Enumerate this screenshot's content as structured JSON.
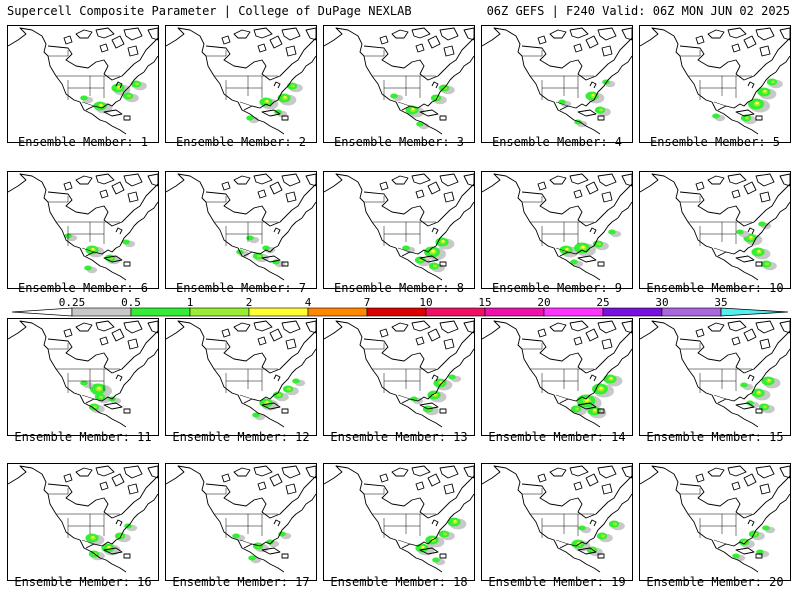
{
  "header": {
    "left": "Supercell Composite Parameter | College of DuPage NEXLAB",
    "right": "06Z GEFS | F240 Valid: 06Z MON JUN 02 2025"
  },
  "member_prefix": "Ensemble Member:",
  "members": [
    {
      "label": "Ensemble Member: 1"
    },
    {
      "label": "Ensemble Member: 2"
    },
    {
      "label": "Ensemble Member: 3"
    },
    {
      "label": "Ensemble Member: 4"
    },
    {
      "label": "Ensemble Member: 5"
    },
    {
      "label": "Ensemble Member: 6"
    },
    {
      "label": "Ensemble Member: 7"
    },
    {
      "label": "Ensemble Member: 8"
    },
    {
      "label": "Ensemble Member: 9"
    },
    {
      "label": "Ensemble Member: 10"
    },
    {
      "label": "Ensemble Member: 11"
    },
    {
      "label": "Ensemble Member: 12"
    },
    {
      "label": "Ensemble Member: 13"
    },
    {
      "label": "Ensemble Member: 14"
    },
    {
      "label": "Ensemble Member: 15"
    },
    {
      "label": "Ensemble Member: 16"
    },
    {
      "label": "Ensemble Member: 17"
    },
    {
      "label": "Ensemble Member: 18"
    },
    {
      "label": "Ensemble Member: 19"
    },
    {
      "label": "Ensemble Member: 20"
    }
  ],
  "colorbar": {
    "ticks": [
      "0.25",
      "0.5",
      "1",
      "2",
      "4",
      "7",
      "10",
      "15",
      "20",
      "25",
      "30",
      "35"
    ],
    "colors": [
      "#c8c8c8",
      "#33ee33",
      "#99ee33",
      "#ffff33",
      "#ff8800",
      "#dd0000",
      "#ee1166",
      "#ee11aa",
      "#ff33ff",
      "#7711dd",
      "#aa66dd",
      "#55eeee"
    ]
  }
}
